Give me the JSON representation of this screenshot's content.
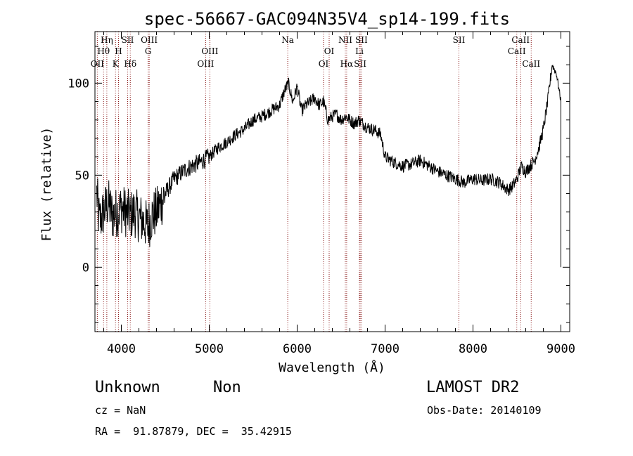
{
  "chart_data": {
    "type": "line",
    "title": "spec-56667-GAC094N35V4_sp14-199.fits",
    "xlabel": "Wavelength (Å)",
    "ylabel": "Flux (relative)",
    "xlim": [
      3700,
      9100
    ],
    "ylim": [
      -35,
      128
    ],
    "x_ticks": [
      4000,
      5000,
      6000,
      7000,
      8000,
      9000
    ],
    "y_ticks": [
      0,
      50,
      100
    ],
    "grid": false,
    "line_color": "#000000",
    "marker_color": "#8b1a1a",
    "series": [
      {
        "x": [
          3720,
          3750,
          3800,
          3850,
          3900,
          3950,
          4000,
          4050,
          4100,
          4150,
          4200,
          4250,
          4300,
          4350,
          4400,
          4450,
          4500,
          4600,
          4700,
          4800,
          4900,
          5000,
          5100,
          5200,
          5300,
          5400,
          5500,
          5600,
          5700,
          5800,
          5850,
          5900,
          5950,
          6000,
          6050,
          6100,
          6150,
          6200,
          6250,
          6300,
          6350,
          6400,
          6450,
          6500,
          6550,
          6600,
          6650,
          6700,
          6750,
          6800,
          6850,
          6900,
          6950,
          7000,
          7100,
          7200,
          7300,
          7400,
          7500,
          7600,
          7700,
          7800,
          7900,
          8000,
          8100,
          8200,
          8300,
          8400,
          8450,
          8500,
          8550,
          8600,
          8650,
          8700,
          8750,
          8800,
          8850,
          8900,
          8950,
          9000
        ],
        "y": [
          40,
          25,
          30,
          35,
          28,
          30,
          32,
          30,
          28,
          30,
          27,
          25,
          22,
          28,
          30,
          35,
          40,
          48,
          52,
          55,
          57,
          60,
          65,
          68,
          72,
          75,
          80,
          82,
          85,
          88,
          95,
          100,
          90,
          98,
          85,
          88,
          90,
          92,
          88,
          90,
          80,
          82,
          83,
          80,
          82,
          80,
          78,
          80,
          78,
          76,
          75,
          74,
          72,
          60,
          57,
          55,
          56,
          58,
          55,
          52,
          50,
          48,
          46,
          48,
          47,
          48,
          46,
          42,
          44,
          48,
          55,
          52,
          55,
          58,
          65,
          75,
          90,
          110,
          105,
          90
        ]
      }
    ],
    "lines": [
      {
        "label": "OII",
        "wave": 3727,
        "row": 3
      },
      {
        "label": "Hθ",
        "wave": 3798,
        "row": 2
      },
      {
        "label": "Hη",
        "wave": 3835,
        "row": 1
      },
      {
        "label": "K",
        "wave": 3934,
        "row": 3
      },
      {
        "label": "H",
        "wave": 3968,
        "row": 2
      },
      {
        "label": "SII",
        "wave": 4072,
        "row": 1
      },
      {
        "label": "Hδ",
        "wave": 4102,
        "row": 3
      },
      {
        "label": "OIII",
        "wave": 4317,
        "row": 1
      },
      {
        "label": "G",
        "wave": 4305,
        "row": 2
      },
      {
        "label": "OIII",
        "wave": 4959,
        "row": 3
      },
      {
        "label": "OIII",
        "wave": 5007,
        "row": 2
      },
      {
        "label": "Na",
        "wave": 5893,
        "row": 1
      },
      {
        "label": "OI",
        "wave": 6300,
        "row": 3
      },
      {
        "label": "OI",
        "wave": 6364,
        "row": 2
      },
      {
        "label": "NII",
        "wave": 6548,
        "row": 1
      },
      {
        "label": "Hα",
        "wave": 6563,
        "row": 3
      },
      {
        "label": "Li",
        "wave": 6708,
        "row": 2
      },
      {
        "label": "SII",
        "wave": 6717,
        "row": 3
      },
      {
        "label": "SII",
        "wave": 6731,
        "row": 1
      },
      {
        "label": "SII",
        "wave": 7840,
        "row": 1
      },
      {
        "label": "CaII",
        "wave": 8498,
        "row": 2
      },
      {
        "label": "CaII",
        "wave": 8542,
        "row": 1
      },
      {
        "label": "CaII",
        "wave": 8662,
        "row": 3
      }
    ]
  },
  "footer": {
    "object_class": "Unknown",
    "object_subclass": "Non",
    "survey": "LAMOST DR2",
    "cz": "cz = NaN",
    "obs_date": "Obs-Date: 20140109",
    "coords": "RA =  91.87879, DEC =  35.42915"
  }
}
